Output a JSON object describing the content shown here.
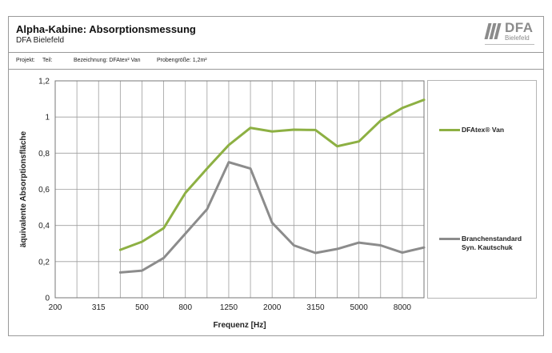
{
  "header": {
    "title": "Alpha-Kabine: Absorptionsmessung",
    "subtitle": "DFA Bielefeld",
    "projekt": "Projekt:",
    "teil": "Teil:",
    "bezeichnung": "Bezeichnung: DFAtex² Van",
    "probengroesse": "Probengröße: 1,2m²"
  },
  "logo": {
    "name": "DFA",
    "city": "Bielefeld"
  },
  "chart_data": {
    "type": "line",
    "xlabel": "Frequenz [Hz]",
    "ylabel": "äquivalente Absorptionsfläche",
    "x_tick_labels": [
      "200",
      "315",
      "500",
      "800",
      "1250",
      "2000",
      "3150",
      "5000",
      "8000"
    ],
    "x_categories": [
      "200",
      "250",
      "315",
      "400",
      "500",
      "630",
      "800",
      "1000",
      "1250",
      "1600",
      "2000",
      "2500",
      "3150",
      "4000",
      "5000",
      "6300",
      "8000",
      "10000"
    ],
    "y_tick_labels": [
      "0",
      "0,2",
      "0,4",
      "0,6",
      "0,8",
      "1",
      "1,2"
    ],
    "ylim": [
      0,
      1.2
    ],
    "grid": true,
    "legend_position": "right",
    "series": [
      {
        "name": "DFAtex® Van",
        "color": "#8db043",
        "x": [
          "400",
          "500",
          "630",
          "800",
          "1000",
          "1250",
          "1600",
          "2000",
          "2500",
          "3150",
          "4000",
          "5000",
          "6300",
          "8000",
          "10000"
        ],
        "values": [
          0.265,
          0.31,
          0.385,
          0.58,
          0.715,
          0.845,
          0.94,
          0.92,
          0.93,
          0.928,
          0.838,
          0.865,
          0.98,
          1.05,
          1.095
        ]
      },
      {
        "name": "Branchenstandard\nSyn. Kautschuk",
        "color": "#8c8c8c",
        "x": [
          "400",
          "500",
          "630",
          "800",
          "1000",
          "1250",
          "1600",
          "2000",
          "2500",
          "3150",
          "4000",
          "5000",
          "6300",
          "8000",
          "10000"
        ],
        "values": [
          0.14,
          0.15,
          0.22,
          0.355,
          0.49,
          0.75,
          0.715,
          0.415,
          0.29,
          0.248,
          0.27,
          0.305,
          0.29,
          0.25,
          0.278
        ]
      }
    ]
  }
}
